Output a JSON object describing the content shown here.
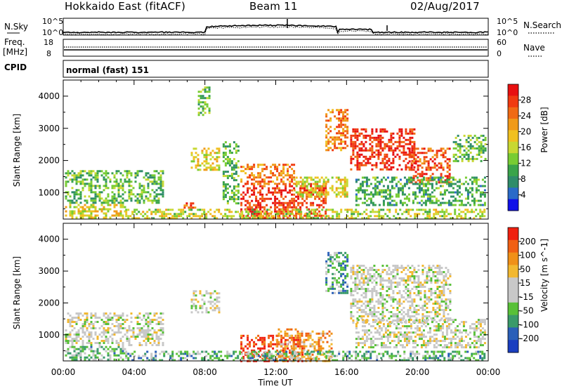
{
  "header": {
    "station": "Hokkaido East (fitACF)",
    "beam": "Beam 11",
    "date": "02/Aug/2017"
  },
  "nsky_panel": {
    "left_label": "N.Sky",
    "right_label": "N.Search",
    "tick_top": "10^5",
    "tick_bottom": "10^0",
    "right_tick_top": "10^5",
    "right_tick_bottom": "10^0"
  },
  "freq_panel": {
    "left_label": "Freq.",
    "unit_label": "[MHz]",
    "tick_top": "18",
    "tick_bottom": "8",
    "right_label": "Nave",
    "right_tick_top": "60",
    "right_tick_bottom": "0"
  },
  "cpid_panel": {
    "label": "CPID",
    "value": "normal (fast) 151"
  },
  "x_axis": {
    "label": "Time UT",
    "ticks": [
      "00:00",
      "04:00",
      "08:00",
      "12:00",
      "16:00",
      "20:00",
      "00:00"
    ]
  },
  "chart_data": [
    {
      "type": "heatmap",
      "quantity": "Power",
      "xlabel": "Time UT",
      "ylabel": "Slant Range [km]",
      "x_range_hours": [
        0,
        24
      ],
      "ylim": [
        180,
        4500
      ],
      "y_ticks": [
        "1000",
        "2000",
        "3000",
        "4000"
      ],
      "colorbar": {
        "label": "Power [dB]",
        "range": [
          0,
          32
        ],
        "ticks": [
          "4",
          "8",
          "12",
          "16",
          "20",
          "24",
          "28"
        ],
        "colors": [
          "#1010e8",
          "#2a6ac8",
          "#2f8c6a",
          "#3aa44a",
          "#78cc33",
          "#c8d832",
          "#f0c020",
          "#f09a18",
          "#f06a14",
          "#f03a10",
          "#e81010"
        ]
      },
      "regions": [
        {
          "t": [
            0.1,
            5.6
          ],
          "r": [
            700,
            1700
          ],
          "level": 0.35
        },
        {
          "t": [
            0.1,
            3.5
          ],
          "r": [
            200,
            650
          ],
          "level": 0.55
        },
        {
          "t": [
            7.2,
            8.8
          ],
          "r": [
            1700,
            2400
          ],
          "level": 0.55
        },
        {
          "t": [
            7.6,
            8.2
          ],
          "r": [
            3400,
            4300
          ],
          "level": 0.35
        },
        {
          "t": [
            6.8,
            7.6
          ],
          "r": [
            500,
            700
          ],
          "level": 0.85
        },
        {
          "t": [
            9.0,
            9.9
          ],
          "r": [
            700,
            2600
          ],
          "level": 0.35
        },
        {
          "t": [
            10.0,
            14.8
          ],
          "r": [
            200,
            1300
          ],
          "level": 0.88
        },
        {
          "t": [
            10.0,
            13.0
          ],
          "r": [
            1250,
            1900
          ],
          "level": 0.72
        },
        {
          "t": [
            13.0,
            16.0
          ],
          "r": [
            900,
            1500
          ],
          "level": 0.55
        },
        {
          "t": [
            14.8,
            16.0
          ],
          "r": [
            2300,
            3600
          ],
          "level": 0.75
        },
        {
          "t": [
            16.2,
            19.8
          ],
          "r": [
            1750,
            3000
          ],
          "level": 0.9
        },
        {
          "t": [
            19.5,
            21.8
          ],
          "r": [
            1300,
            2400
          ],
          "level": 0.82
        },
        {
          "t": [
            16.5,
            23.8
          ],
          "r": [
            600,
            1500
          ],
          "level": 0.32
        },
        {
          "t": [
            22.0,
            23.8
          ],
          "r": [
            2000,
            2800
          ],
          "level": 0.38
        },
        {
          "t": [
            3.5,
            23.8
          ],
          "r": [
            200,
            500
          ],
          "level": 0.5
        }
      ]
    },
    {
      "type": "heatmap",
      "quantity": "Velocity",
      "xlabel": "Time UT",
      "ylabel": "Slant Range [km]",
      "x_range_hours": [
        0,
        24
      ],
      "ylim": [
        180,
        4500
      ],
      "y_ticks": [
        "1000",
        "2000",
        "3000",
        "4000"
      ],
      "colorbar": {
        "label": "Velocity [m s^-1]",
        "range": [
          -250,
          250
        ],
        "ticks": [
          "200",
          "100",
          "50",
          "15",
          "-15",
          "-50",
          "-100",
          "-200"
        ],
        "colors": [
          "#1a3ec0",
          "#2a5fb8",
          "#3a9a6a",
          "#58c038",
          "#c8c8c8",
          "#c8c8c8",
          "#f2b830",
          "#f09018",
          "#f06014",
          "#f02010"
        ]
      },
      "regions": [
        {
          "t": [
            0.1,
            5.6
          ],
          "r": [
            700,
            1700
          ],
          "level": 0.5
        },
        {
          "t": [
            0.1,
            3.5
          ],
          "r": [
            200,
            650
          ],
          "level": 0.35
        },
        {
          "t": [
            7.2,
            8.8
          ],
          "r": [
            1700,
            2400
          ],
          "level": 0.5
        },
        {
          "t": [
            10.0,
            13.5
          ],
          "r": [
            200,
            1000
          ],
          "level": 0.92
        },
        {
          "t": [
            12.0,
            15.2
          ],
          "r": [
            200,
            1200
          ],
          "level": 0.72
        },
        {
          "t": [
            14.8,
            16.0
          ],
          "r": [
            2300,
            3600
          ],
          "level": 0.28
        },
        {
          "t": [
            16.2,
            21.8
          ],
          "r": [
            1400,
            3200
          ],
          "level": 0.5
        },
        {
          "t": [
            16.5,
            23.8
          ],
          "r": [
            600,
            1500
          ],
          "level": 0.5
        },
        {
          "t": [
            3.5,
            23.8
          ],
          "r": [
            200,
            500
          ],
          "level": 0.32
        }
      ]
    }
  ]
}
